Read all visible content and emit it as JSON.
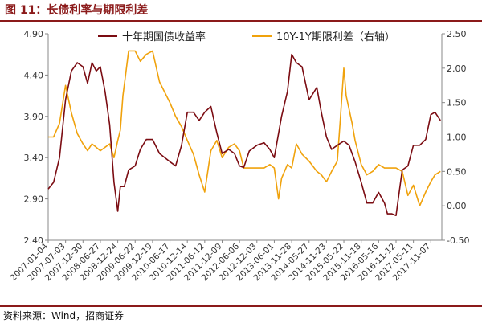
{
  "figure_title": "图 11：长债利率与期限利差",
  "source_note": "资料来源：Wind，招商证券",
  "colors": {
    "accent": "#8b1a1a",
    "series1": "#7b0c12",
    "series2": "#f0a20c"
  },
  "chart_data": {
    "type": "line",
    "title": "",
    "xlabel": "",
    "ylabel": "",
    "legend_position": "top",
    "grid": false,
    "x_ticks": [
      "2007-01-04",
      "2007-07-03",
      "2007-12-30",
      "2008-06-27",
      "2008-12-24",
      "2009-06-22",
      "2009-12-19",
      "2010-06-17",
      "2010-12-14",
      "2011-06-12",
      "2011-12-09",
      "2012-06-06",
      "2012-12-03",
      "2013-06-01",
      "2013-11-28",
      "2014-05-27",
      "2014-11-23",
      "2015-05-22",
      "2015-11-18",
      "2016-05-16",
      "2016-11-12",
      "2017-05-11",
      "2017-11-07"
    ],
    "y_left": {
      "lim": [
        2.4,
        4.9
      ],
      "ticks": [
        "2.40",
        "2.90",
        "3.40",
        "3.90",
        "4.40",
        "4.90"
      ]
    },
    "y_right": {
      "lim": [
        -0.5,
        2.5
      ],
      "ticks": [
        "-0.50",
        "0.00",
        "0.50",
        "1.00",
        "1.50",
        "2.00",
        "2.50"
      ],
      "label": "右轴"
    },
    "series": [
      {
        "name": "十年期国债收益率",
        "axis": "left",
        "points": [
          [
            "2007-01-04",
            3.02
          ],
          [
            "2007-03-01",
            3.1
          ],
          [
            "2007-05-01",
            3.4
          ],
          [
            "2007-07-03",
            4.1
          ],
          [
            "2007-09-01",
            4.45
          ],
          [
            "2007-11-01",
            4.55
          ],
          [
            "2007-12-30",
            4.5
          ],
          [
            "2008-02-15",
            4.3
          ],
          [
            "2008-04-01",
            4.55
          ],
          [
            "2008-05-15",
            4.45
          ],
          [
            "2008-06-27",
            4.5
          ],
          [
            "2008-08-15",
            4.2
          ],
          [
            "2008-10-01",
            3.8
          ],
          [
            "2008-11-15",
            3.1
          ],
          [
            "2008-12-24",
            2.75
          ],
          [
            "2009-01-20",
            3.05
          ],
          [
            "2009-03-01",
            3.05
          ],
          [
            "2009-04-15",
            3.25
          ],
          [
            "2009-06-22",
            3.3
          ],
          [
            "2009-08-15",
            3.5
          ],
          [
            "2009-10-15",
            3.62
          ],
          [
            "2009-12-19",
            3.62
          ],
          [
            "2010-03-01",
            3.45
          ],
          [
            "2010-06-17",
            3.35
          ],
          [
            "2010-08-15",
            3.3
          ],
          [
            "2010-10-15",
            3.55
          ],
          [
            "2010-12-14",
            3.95
          ],
          [
            "2011-02-15",
            3.95
          ],
          [
            "2011-04-15",
            3.85
          ],
          [
            "2011-06-12",
            3.95
          ],
          [
            "2011-08-15",
            4.02
          ],
          [
            "2011-10-15",
            3.7
          ],
          [
            "2011-12-09",
            3.45
          ],
          [
            "2012-02-15",
            3.5
          ],
          [
            "2012-04-15",
            3.45
          ],
          [
            "2012-06-06",
            3.3
          ],
          [
            "2012-07-20",
            3.28
          ],
          [
            "2012-09-15",
            3.48
          ],
          [
            "2012-12-03",
            3.55
          ],
          [
            "2013-02-15",
            3.58
          ],
          [
            "2013-04-15",
            3.5
          ],
          [
            "2013-06-01",
            3.4
          ],
          [
            "2013-08-15",
            3.9
          ],
          [
            "2013-10-15",
            4.2
          ],
          [
            "2013-11-28",
            4.65
          ],
          [
            "2014-01-15",
            4.55
          ],
          [
            "2014-03-15",
            4.5
          ],
          [
            "2014-05-27",
            4.1
          ],
          [
            "2014-08-15",
            4.25
          ],
          [
            "2014-10-01",
            3.95
          ],
          [
            "2014-11-23",
            3.65
          ],
          [
            "2015-01-15",
            3.5
          ],
          [
            "2015-03-15",
            3.55
          ],
          [
            "2015-05-22",
            3.6
          ],
          [
            "2015-07-15",
            3.55
          ],
          [
            "2015-09-15",
            3.35
          ],
          [
            "2015-11-18",
            3.1
          ],
          [
            "2016-01-15",
            2.85
          ],
          [
            "2016-03-15",
            2.85
          ],
          [
            "2016-05-16",
            2.98
          ],
          [
            "2016-07-15",
            2.85
          ],
          [
            "2016-08-15",
            2.72
          ],
          [
            "2016-09-30",
            2.72
          ],
          [
            "2016-11-12",
            2.7
          ],
          [
            "2017-01-15",
            3.25
          ],
          [
            "2017-03-15",
            3.3
          ],
          [
            "2017-05-11",
            3.55
          ],
          [
            "2017-07-15",
            3.55
          ],
          [
            "2017-09-15",
            3.62
          ],
          [
            "2017-11-07",
            3.92
          ],
          [
            "2017-12-20",
            3.95
          ],
          [
            "2018-02-15",
            3.85
          ]
        ]
      },
      {
        "name": "10Y-1Y期限利差（右轴）",
        "axis": "right",
        "points": [
          [
            "2007-01-04",
            1.0
          ],
          [
            "2007-03-01",
            1.0
          ],
          [
            "2007-05-01",
            1.2
          ],
          [
            "2007-07-03",
            1.75
          ],
          [
            "2007-09-01",
            1.35
          ],
          [
            "2007-11-01",
            1.05
          ],
          [
            "2007-12-30",
            0.9
          ],
          [
            "2008-02-15",
            0.8
          ],
          [
            "2008-04-01",
            0.9
          ],
          [
            "2008-05-15",
            0.85
          ],
          [
            "2008-06-27",
            0.8
          ],
          [
            "2008-08-15",
            0.85
          ],
          [
            "2008-10-01",
            0.9
          ],
          [
            "2008-11-15",
            0.7
          ],
          [
            "2008-12-24",
            0.95
          ],
          [
            "2009-01-20",
            1.1
          ],
          [
            "2009-02-15",
            1.6
          ],
          [
            "2009-03-15",
            1.9
          ],
          [
            "2009-04-15",
            2.25
          ],
          [
            "2009-06-22",
            2.25
          ],
          [
            "2009-08-15",
            2.1
          ],
          [
            "2009-10-15",
            2.2
          ],
          [
            "2009-12-19",
            2.25
          ],
          [
            "2010-03-01",
            1.8
          ],
          [
            "2010-06-17",
            1.5
          ],
          [
            "2010-08-15",
            1.3
          ],
          [
            "2010-10-15",
            1.15
          ],
          [
            "2010-12-14",
            0.95
          ],
          [
            "2011-02-15",
            0.75
          ],
          [
            "2011-04-15",
            0.45
          ],
          [
            "2011-06-12",
            0.2
          ],
          [
            "2011-08-15",
            0.8
          ],
          [
            "2011-10-15",
            0.95
          ],
          [
            "2011-12-09",
            0.7
          ],
          [
            "2012-02-15",
            0.85
          ],
          [
            "2012-04-15",
            0.9
          ],
          [
            "2012-06-06",
            0.8
          ],
          [
            "2012-07-20",
            0.55
          ],
          [
            "2012-09-15",
            0.55
          ],
          [
            "2012-12-03",
            0.55
          ],
          [
            "2013-02-15",
            0.55
          ],
          [
            "2013-04-15",
            0.6
          ],
          [
            "2013-06-01",
            0.55
          ],
          [
            "2013-07-15",
            0.1
          ],
          [
            "2013-08-15",
            0.4
          ],
          [
            "2013-10-15",
            0.6
          ],
          [
            "2013-11-28",
            0.55
          ],
          [
            "2014-01-15",
            0.9
          ],
          [
            "2014-03-15",
            0.75
          ],
          [
            "2014-05-27",
            0.65
          ],
          [
            "2014-08-15",
            0.5
          ],
          [
            "2014-10-01",
            0.45
          ],
          [
            "2014-11-23",
            0.35
          ],
          [
            "2015-01-15",
            0.5
          ],
          [
            "2015-03-15",
            0.65
          ],
          [
            "2015-04-15",
            1.25
          ],
          [
            "2015-05-22",
            2.0
          ],
          [
            "2015-06-15",
            1.6
          ],
          [
            "2015-08-15",
            1.2
          ],
          [
            "2015-09-15",
            0.95
          ],
          [
            "2015-11-18",
            0.6
          ],
          [
            "2016-01-15",
            0.45
          ],
          [
            "2016-03-15",
            0.5
          ],
          [
            "2016-05-16",
            0.6
          ],
          [
            "2016-07-15",
            0.55
          ],
          [
            "2016-09-15",
            0.55
          ],
          [
            "2016-11-12",
            0.55
          ],
          [
            "2017-01-15",
            0.5
          ],
          [
            "2017-03-15",
            0.15
          ],
          [
            "2017-05-11",
            0.3
          ],
          [
            "2017-07-15",
            0.0
          ],
          [
            "2017-09-15",
            0.2
          ],
          [
            "2017-11-07",
            0.35
          ],
          [
            "2017-12-20",
            0.45
          ],
          [
            "2018-02-15",
            0.5
          ]
        ]
      }
    ]
  }
}
